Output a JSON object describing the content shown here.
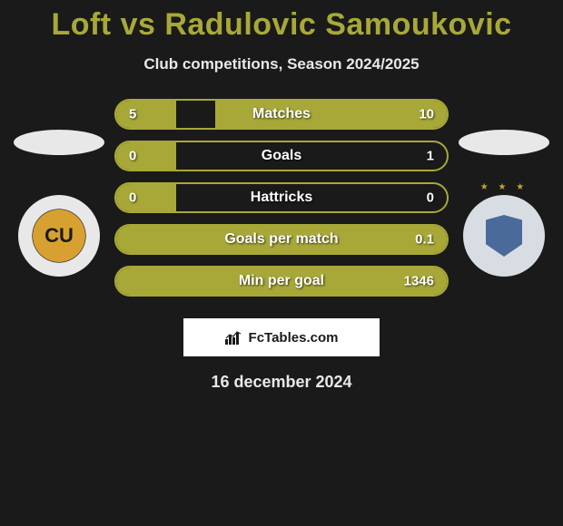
{
  "title": "Loft vs Radulovic Samoukovic",
  "subtitle": "Club competitions, Season 2024/2025",
  "date": "16 december 2024",
  "footer_brand": "FcTables.com",
  "colors": {
    "background": "#1a1a1a",
    "accent": "#a8a838",
    "text_light": "#e8e8e8",
    "bar_text": "#ffffff",
    "footer_bg": "#ffffff",
    "footer_text": "#1a1a1a"
  },
  "left_badge": {
    "label": "CU",
    "inner_color": "#d8a030",
    "ring_color": "#e8e8e8"
  },
  "right_badge": {
    "shield_color": "#4a6a9a",
    "bg_color": "#d8dde3",
    "star_color": "#c4a030"
  },
  "bars": [
    {
      "label": "Matches",
      "left_val": "5",
      "right_val": "10",
      "left_pct": 18,
      "right_pct": 70
    },
    {
      "label": "Goals",
      "left_val": "0",
      "right_val": "1",
      "left_pct": 18,
      "right_pct": 0
    },
    {
      "label": "Hattricks",
      "left_val": "0",
      "right_val": "0",
      "left_pct": 18,
      "right_pct": 0
    },
    {
      "label": "Goals per match",
      "left_val": "",
      "right_val": "0.1",
      "left_pct": 100,
      "right_pct": 0
    },
    {
      "label": "Min per goal",
      "left_val": "",
      "right_val": "1346",
      "left_pct": 100,
      "right_pct": 0
    }
  ],
  "bar_style": {
    "height": 34,
    "radius": 17,
    "gap": 12,
    "label_fontsize": 16,
    "value_fontsize": 15,
    "border_width": 2
  }
}
